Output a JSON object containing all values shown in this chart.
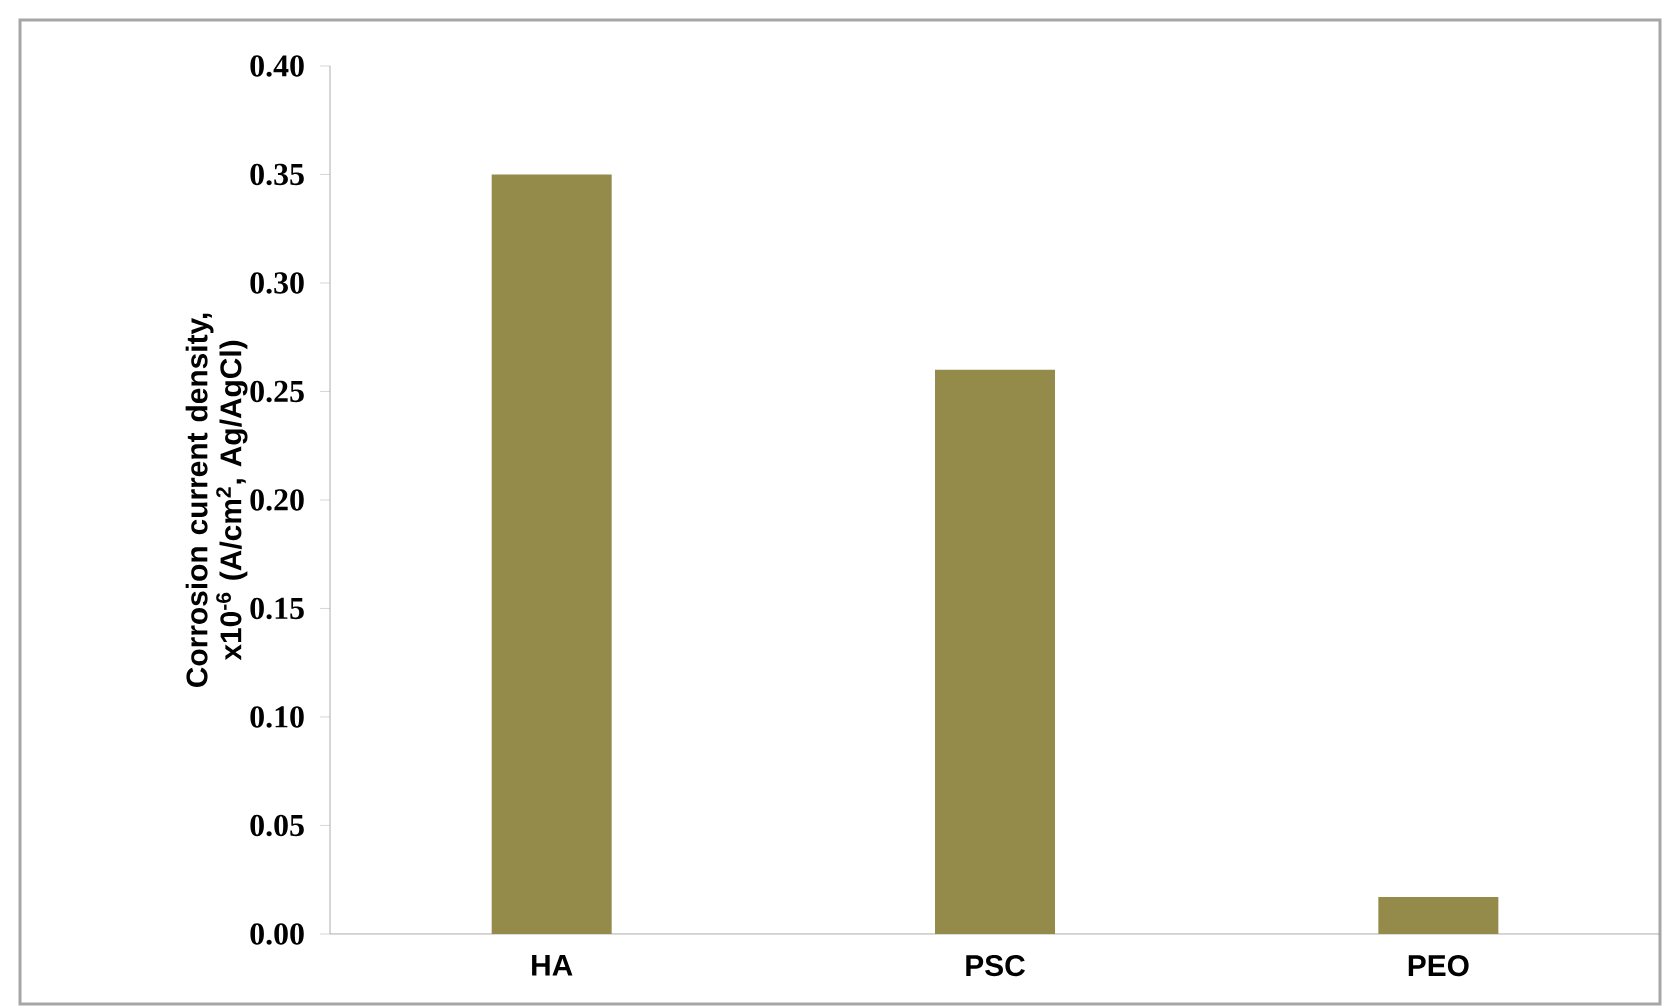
{
  "chart_data": {
    "type": "bar",
    "ylabel": "Corrosion current density, x10$^{-6}$ (A/cm$^{2}$, Ag/AgCl)",
    "categories": [
      "HA",
      "PSC",
      "PEO"
    ],
    "values": [
      0.35,
      0.26,
      0.017
    ],
    "color": "#948a4a",
    "ylim": [
      0,
      0.4
    ],
    "yticks": [
      {
        "value": 0,
        "label": "0.00"
      },
      {
        "value": 0.05,
        "label": "0.05"
      },
      {
        "value": 0.1,
        "label": "0.10"
      },
      {
        "value": 0.15,
        "label": "0.15"
      },
      {
        "value": 0.2,
        "label": "0.20"
      },
      {
        "value": 0.25,
        "label": "0.25"
      },
      {
        "value": 0.3,
        "label": "0.30"
      },
      {
        "value": 0.35,
        "label": "0.35"
      },
      {
        "value": 0.4,
        "label": "0.40"
      }
    ],
    "grid": false
  }
}
